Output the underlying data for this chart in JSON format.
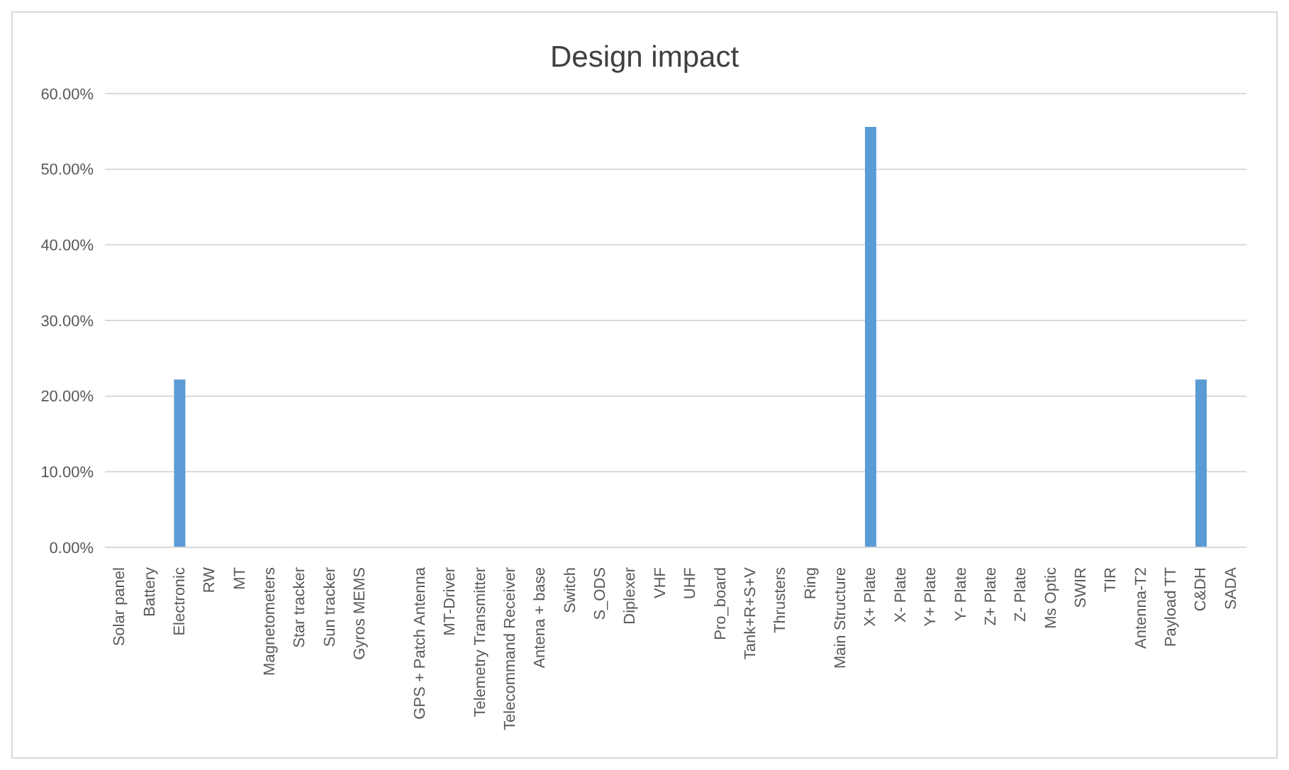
{
  "chart_data": {
    "type": "bar",
    "title": "Design impact",
    "categories": [
      "Solar panel",
      "Battery",
      "Electronic",
      "RW",
      "MT",
      "Magnetometers",
      "Star tracker",
      "Sun tracker",
      "Gyros MEMS",
      null,
      "GPS + Patch Antenna",
      "MT-Driver",
      "Telemetry Transmitter",
      "Telecommand Receiver",
      "Antena + base",
      "Switch",
      "S_ODS",
      "Diplexer",
      "VHF",
      "UHF",
      "Pro_board",
      "Tank+R+S+V",
      "Thrusters",
      "Ring",
      "Main Structure",
      "X+ Plate",
      "X- Plate",
      "Y+ Plate",
      "Y- Plate",
      "Z+ Plate",
      "Z- Plate",
      "Ms Optic",
      "SWIR",
      "TIR",
      "Antenna-T2",
      "Payload TT",
      "C&DH",
      "SADA"
    ],
    "values": [
      0,
      0,
      22.2,
      0,
      0,
      0,
      0,
      0,
      0,
      0,
      0,
      0,
      0,
      0,
      0,
      0,
      0,
      0,
      0,
      0,
      0,
      0,
      0,
      0,
      0,
      55.6,
      0,
      0,
      0,
      0,
      0,
      0,
      0,
      0,
      0,
      0,
      22.2,
      0
    ],
    "color": "#5b9bd5",
    "ylim": [
      0,
      60
    ],
    "yticks": [
      {
        "value": 0,
        "label": "0.00%"
      },
      {
        "value": 10,
        "label": "10.00%"
      },
      {
        "value": 20,
        "label": "20.00%"
      },
      {
        "value": 30,
        "label": "30.00%"
      },
      {
        "value": 40,
        "label": "40.00%"
      },
      {
        "value": 50,
        "label": "50.00%"
      },
      {
        "value": 60,
        "label": "60.00%"
      }
    ],
    "grid": "y"
  }
}
